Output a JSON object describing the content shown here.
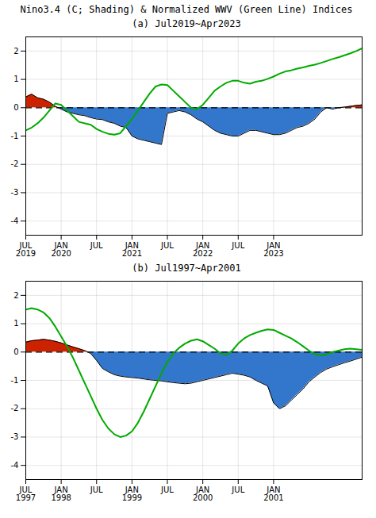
{
  "chart_data": [
    {
      "type": "area",
      "title": "Nino3.4 (C; Shading) & Normalized WWV (Green Line) Indices",
      "subtitle": "(a) Jul2019~Apr2023",
      "categories": [
        "JUL\n2019",
        null,
        null,
        null,
        null,
        null,
        "JAN\n2020",
        null,
        null,
        null,
        null,
        null,
        "JUL",
        null,
        null,
        null,
        null,
        null,
        "JAN\n2021",
        null,
        null,
        null,
        null,
        null,
        "JUL",
        null,
        null,
        null,
        null,
        null,
        "JAN\n2022",
        null,
        null,
        null,
        null,
        null,
        "JUL",
        null,
        null,
        null,
        null,
        null,
        "JAN\n2023",
        null,
        null,
        null,
        null,
        null,
        null,
        null,
        null,
        null,
        null,
        null,
        null,
        null,
        null,
        null
      ],
      "series": [
        {
          "type": "area",
          "color": "#000000",
          "colors": [
            "#cc2200",
            "#3377cc"
          ],
          "values": [
            0.38,
            0.48,
            0.35,
            0.3,
            0.2,
            0.05,
            -0.05,
            -0.15,
            -0.2,
            -0.25,
            -0.28,
            -0.35,
            -0.4,
            -0.42,
            -0.5,
            -0.55,
            -0.65,
            -0.7,
            -1.0,
            -1.1,
            -1.15,
            -1.2,
            -1.25,
            -1.3,
            -0.2,
            -0.15,
            -0.1,
            -0.15,
            -0.25,
            -0.4,
            -0.5,
            -0.65,
            -0.8,
            -0.9,
            -0.95,
            -1.0,
            -1.0,
            -0.9,
            -0.8,
            -0.8,
            -0.85,
            -0.9,
            -0.95,
            -0.95,
            -0.9,
            -0.8,
            -0.7,
            -0.65,
            -0.55,
            -0.4,
            -0.15,
            0.0,
            -0.05,
            0.0,
            0.02,
            0.05,
            0.08,
            0.1
          ]
        },
        {
          "type": "line",
          "color": "#00aa00",
          "values": [
            -0.8,
            -0.7,
            -0.55,
            -0.35,
            -0.1,
            0.15,
            0.1,
            -0.1,
            -0.3,
            -0.5,
            -0.55,
            -0.6,
            -0.75,
            -0.85,
            -0.92,
            -0.95,
            -0.9,
            -0.65,
            -0.4,
            -0.1,
            0.2,
            0.5,
            0.75,
            0.82,
            0.8,
            0.6,
            0.4,
            0.2,
            0.0,
            -0.05,
            0.1,
            0.35,
            0.6,
            0.75,
            0.88,
            0.95,
            0.95,
            0.88,
            0.85,
            0.92,
            0.95,
            1.02,
            1.1,
            1.2,
            1.28,
            1.32,
            1.38,
            1.42,
            1.48,
            1.52,
            1.58,
            1.65,
            1.72,
            1.78,
            1.85,
            1.92,
            2.0,
            2.1
          ]
        }
      ],
      "ylim": [
        -4.5,
        2.5
      ],
      "yticks": [
        -4,
        -3,
        -2,
        -1,
        0,
        1,
        2
      ],
      "grid": true
    },
    {
      "type": "area",
      "subtitle": "(b) Jul1997~Apr2001",
      "categories": [
        "JUL\n1997",
        null,
        null,
        null,
        null,
        null,
        "JAN\n1998",
        null,
        null,
        null,
        null,
        null,
        "JUL",
        null,
        null,
        null,
        null,
        null,
        "JAN\n1999",
        null,
        null,
        null,
        null,
        null,
        "JUL",
        null,
        null,
        null,
        null,
        null,
        "JAN\n2000",
        null,
        null,
        null,
        null,
        null,
        "JUL",
        null,
        null,
        null,
        null,
        null,
        "JAN\n2001",
        null,
        null,
        null,
        null,
        null,
        null,
        null,
        null,
        null,
        null,
        null,
        null,
        null,
        null,
        null
      ],
      "series": [
        {
          "type": "area",
          "color": "#000000",
          "colors": [
            "#cc2200",
            "#3377cc"
          ],
          "values": [
            0.35,
            0.4,
            0.42,
            0.45,
            0.42,
            0.38,
            0.32,
            0.25,
            0.18,
            0.12,
            0.05,
            -0.05,
            -0.3,
            -0.58,
            -0.7,
            -0.8,
            -0.85,
            -0.88,
            -0.9,
            -0.92,
            -0.95,
            -0.98,
            -1.0,
            -1.02,
            -1.05,
            -1.08,
            -1.1,
            -1.12,
            -1.1,
            -1.05,
            -1.0,
            -0.95,
            -0.9,
            -0.85,
            -0.8,
            -0.75,
            -0.78,
            -0.82,
            -0.88,
            -1.0,
            -1.1,
            -1.2,
            -1.8,
            -2.0,
            -1.9,
            -1.7,
            -1.5,
            -1.3,
            -1.05,
            -0.88,
            -0.72,
            -0.6,
            -0.52,
            -0.45,
            -0.38,
            -0.32,
            -0.25,
            -0.18
          ]
        },
        {
          "type": "line",
          "color": "#00aa00",
          "values": [
            1.5,
            1.55,
            1.5,
            1.4,
            1.2,
            0.9,
            0.55,
            0.2,
            -0.2,
            -0.65,
            -1.1,
            -1.55,
            -2.0,
            -2.4,
            -2.7,
            -2.9,
            -3.0,
            -2.95,
            -2.8,
            -2.5,
            -2.1,
            -1.65,
            -1.2,
            -0.75,
            -0.35,
            -0.05,
            0.15,
            0.3,
            0.4,
            0.45,
            0.38,
            0.25,
            0.12,
            -0.05,
            -0.1,
            0.05,
            0.3,
            0.48,
            0.6,
            0.68,
            0.75,
            0.8,
            0.78,
            0.68,
            0.58,
            0.48,
            0.35,
            0.2,
            0.05,
            -0.08,
            -0.12,
            -0.08,
            0.0,
            0.05,
            0.1,
            0.12,
            0.1,
            0.08
          ]
        }
      ],
      "ylim": [
        -4.5,
        2.5
      ],
      "yticks": [
        -4,
        -3,
        -2,
        -1,
        0,
        1,
        2
      ],
      "grid": true
    }
  ]
}
